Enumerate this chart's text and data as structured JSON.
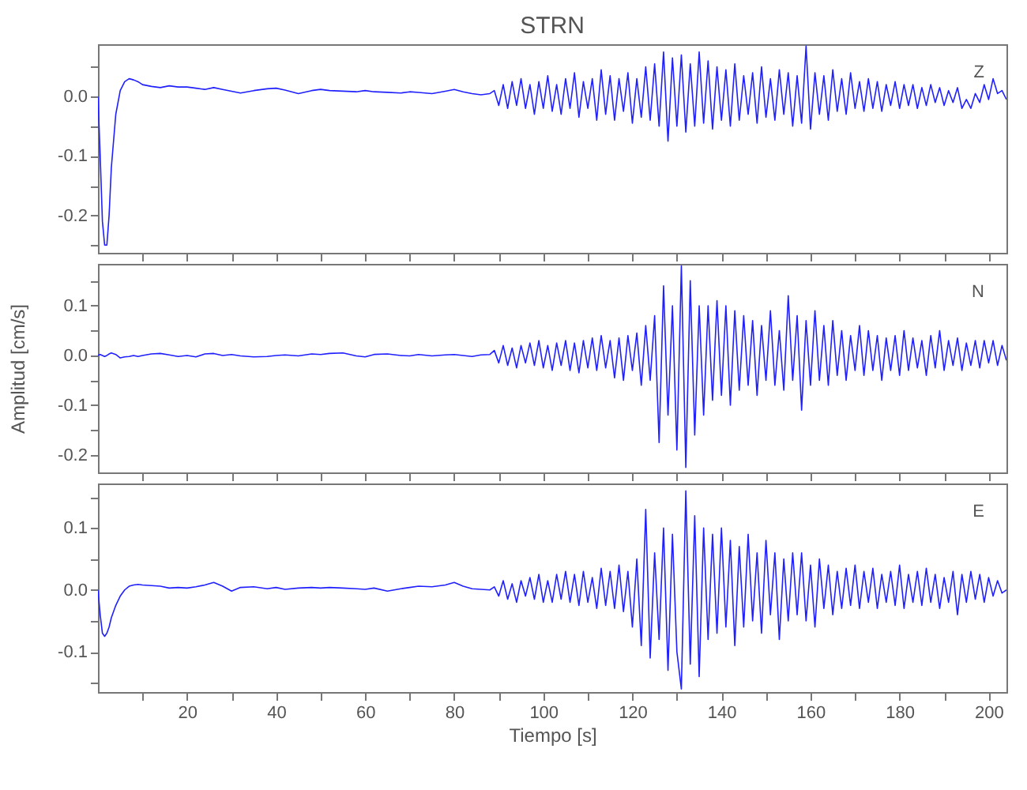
{
  "chart_data": [
    {
      "type": "line",
      "title": "STRN",
      "annotations": [
        "Z"
      ],
      "xlim": [
        0,
        204
      ],
      "ylim": [
        -0.263,
        0.088
      ],
      "tick_labels": "y",
      "grid": false,
      "xticks": [
        {
          "value": 10,
          "label": null
        },
        {
          "value": 20,
          "label": null
        },
        {
          "value": 30,
          "label": null
        },
        {
          "value": 40,
          "label": null
        },
        {
          "value": 50,
          "label": null
        },
        {
          "value": 60,
          "label": null
        },
        {
          "value": 70,
          "label": null
        },
        {
          "value": 80,
          "label": null
        },
        {
          "value": 90,
          "label": null
        },
        {
          "value": 100,
          "label": null
        },
        {
          "value": 110,
          "label": null
        },
        {
          "value": 120,
          "label": null
        },
        {
          "value": 130,
          "label": null
        },
        {
          "value": 140,
          "label": null
        },
        {
          "value": 150,
          "label": null
        },
        {
          "value": 160,
          "label": null
        },
        {
          "value": 170,
          "label": null
        },
        {
          "value": 180,
          "label": null
        },
        {
          "value": 190,
          "label": null
        },
        {
          "value": 200,
          "label": null
        }
      ],
      "yticks": [
        {
          "value": 0.05,
          "label": null
        },
        {
          "value": 0,
          "label": "0.0"
        },
        {
          "value": -0.05,
          "label": null
        },
        -0.1,
        {
          "value": -0.15,
          "label": null
        },
        -0.2,
        {
          "value": -0.25,
          "label": null
        }
      ],
      "x": [
        0,
        0.5,
        1,
        1.5,
        2,
        2.5,
        3,
        4,
        5,
        6,
        7,
        8,
        9,
        10,
        12,
        14,
        16,
        18,
        20,
        22,
        24,
        26,
        28,
        30,
        32,
        35,
        38,
        40,
        42,
        45,
        48,
        50,
        52,
        55,
        58,
        60,
        62,
        65,
        68,
        70,
        72,
        75,
        78,
        80,
        82,
        84,
        86,
        88,
        89,
        90,
        91,
        92,
        93,
        94,
        95,
        96,
        97,
        98,
        99,
        100,
        101,
        102,
        103,
        104,
        105,
        106,
        107,
        108,
        109,
        110,
        111,
        112,
        113,
        114,
        115,
        116,
        117,
        118,
        119,
        120,
        121,
        122,
        123,
        124,
        125,
        126,
        127,
        128,
        129,
        130,
        131,
        132,
        133,
        134,
        135,
        136,
        137,
        138,
        139,
        140,
        141,
        142,
        143,
        144,
        145,
        146,
        147,
        148,
        149,
        150,
        151,
        152,
        153,
        154,
        155,
        156,
        157,
        158,
        159,
        160,
        161,
        162,
        163,
        164,
        165,
        166,
        167,
        168,
        169,
        170,
        171,
        172,
        173,
        174,
        175,
        176,
        177,
        178,
        179,
        180,
        181,
        182,
        183,
        184,
        185,
        186,
        187,
        188,
        189,
        190,
        191,
        192,
        193,
        194,
        195,
        196,
        197,
        198,
        199,
        200,
        201,
        202,
        203,
        204
      ],
      "series": [
        {
          "color": "#2020ff",
          "values": [
            0,
            -0.1,
            -0.21,
            -0.25,
            -0.25,
            -0.2,
            -0.12,
            -0.03,
            0.01,
            0.025,
            0.03,
            0.028,
            0.025,
            0.02,
            0.017,
            0.015,
            0.018,
            0.016,
            0.016,
            0.014,
            0.012,
            0.015,
            0.012,
            0.009,
            0.006,
            0.01,
            0.013,
            0.014,
            0.011,
            0.005,
            0.01,
            0.012,
            0.01,
            0.009,
            0.008,
            0.01,
            0.008,
            0.007,
            0.006,
            0.008,
            0.007,
            0.005,
            0.009,
            0.012,
            0.008,
            0.005,
            0.003,
            0.005,
            0.01,
            -0.015,
            0.02,
            -0.02,
            0.025,
            -0.015,
            0.03,
            -0.02,
            0.02,
            -0.03,
            0.025,
            -0.02,
            0.035,
            -0.025,
            0.02,
            -0.03,
            0.03,
            -0.02,
            0.04,
            -0.035,
            0.025,
            -0.02,
            0.03,
            -0.04,
            0.045,
            -0.03,
            0.035,
            -0.04,
            0.03,
            -0.025,
            0.04,
            -0.045,
            0.03,
            -0.035,
            0.05,
            -0.04,
            0.055,
            -0.05,
            0.075,
            -0.075,
            0.065,
            -0.05,
            0.07,
            -0.06,
            0.055,
            -0.05,
            0.075,
            -0.045,
            0.06,
            -0.055,
            0.05,
            -0.04,
            0.045,
            -0.05,
            0.055,
            -0.04,
            0.035,
            -0.03,
            0.04,
            -0.045,
            0.05,
            -0.035,
            0.03,
            -0.04,
            0.045,
            -0.03,
            0.04,
            -0.05,
            0.035,
            -0.045,
            0.085,
            -0.055,
            0.04,
            -0.03,
            0.035,
            -0.04,
            0.045,
            -0.025,
            0.03,
            -0.03,
            0.04,
            -0.02,
            0.025,
            -0.025,
            0.03,
            -0.02,
            0.025,
            -0.025,
            0.02,
            -0.015,
            0.025,
            -0.02,
            0.02,
            -0.015,
            0.02,
            -0.02,
            0.015,
            -0.015,
            0.02,
            -0.01,
            0.015,
            -0.015,
            0.01,
            -0.01,
            0.015,
            -0.02,
            -0.005,
            -0.02,
            0.005,
            -0.01,
            0.02,
            -0.005,
            0.03,
            0.005,
            0.01,
            -0.005
          ]
        }
      ]
    },
    {
      "type": "line",
      "ylabel": "Amplitud [cm/s]",
      "annotations": [
        "N"
      ],
      "xlim": [
        0,
        204
      ],
      "ylim": [
        -0.235,
        0.184
      ],
      "tick_labels": "y",
      "grid": false,
      "xticks": [
        {
          "value": 10,
          "label": null
        },
        {
          "value": 20,
          "label": null
        },
        {
          "value": 30,
          "label": null
        },
        {
          "value": 40,
          "label": null
        },
        {
          "value": 50,
          "label": null
        },
        {
          "value": 60,
          "label": null
        },
        {
          "value": 70,
          "label": null
        },
        {
          "value": 80,
          "label": null
        },
        {
          "value": 90,
          "label": null
        },
        {
          "value": 100,
          "label": null
        },
        {
          "value": 110,
          "label": null
        },
        {
          "value": 120,
          "label": null
        },
        {
          "value": 130,
          "label": null
        },
        {
          "value": 140,
          "label": null
        },
        {
          "value": 150,
          "label": null
        },
        {
          "value": 160,
          "label": null
        },
        {
          "value": 170,
          "label": null
        },
        {
          "value": 180,
          "label": null
        },
        {
          "value": 190,
          "label": null
        },
        {
          "value": 200,
          "label": null
        }
      ],
      "yticks": [
        {
          "value": 0.15,
          "label": null
        },
        0.1,
        {
          "value": 0.05,
          "label": null
        },
        {
          "value": 0,
          "label": "0.0"
        },
        {
          "value": -0.05,
          "label": null
        },
        -0.1,
        {
          "value": -0.15,
          "label": null
        },
        -0.2
      ],
      "x": [
        0,
        0.5,
        1,
        1.5,
        2,
        2.5,
        3,
        4,
        5,
        6,
        7,
        8,
        9,
        10,
        12,
        14,
        16,
        18,
        20,
        22,
        24,
        26,
        28,
        30,
        32,
        35,
        38,
        40,
        42,
        45,
        48,
        50,
        52,
        55,
        58,
        60,
        62,
        65,
        68,
        70,
        72,
        75,
        78,
        80,
        82,
        84,
        86,
        88,
        89,
        90,
        91,
        92,
        93,
        94,
        95,
        96,
        97,
        98,
        99,
        100,
        101,
        102,
        103,
        104,
        105,
        106,
        107,
        108,
        109,
        110,
        111,
        112,
        113,
        114,
        115,
        116,
        117,
        118,
        119,
        120,
        121,
        122,
        123,
        124,
        125,
        126,
        127,
        128,
        129,
        130,
        131,
        132,
        133,
        134,
        135,
        136,
        137,
        138,
        139,
        140,
        141,
        142,
        143,
        144,
        145,
        146,
        147,
        148,
        149,
        150,
        151,
        152,
        153,
        154,
        155,
        156,
        157,
        158,
        159,
        160,
        161,
        162,
        163,
        164,
        165,
        166,
        167,
        168,
        169,
        170,
        171,
        172,
        173,
        174,
        175,
        176,
        177,
        178,
        179,
        180,
        181,
        182,
        183,
        184,
        185,
        186,
        187,
        188,
        189,
        190,
        191,
        192,
        193,
        194,
        195,
        196,
        197,
        198,
        199,
        200,
        201,
        202,
        203,
        204
      ],
      "series": [
        {
          "color": "#2020ff",
          "values": [
            0,
            0.002,
            0,
            -0.002,
            0,
            0.003,
            0.005,
            0.002,
            -0.005,
            -0.003,
            -0.002,
            0,
            -0.002,
            0,
            0.003,
            0.004,
            0.001,
            -0.002,
            0,
            -0.003,
            0.003,
            0.004,
            0,
            0.002,
            -0.001,
            -0.003,
            -0.002,
            0,
            0.001,
            -0.001,
            0.003,
            0.002,
            0.004,
            0.005,
            -0.001,
            -0.003,
            0.002,
            0.003,
            0,
            -0.001,
            0.002,
            -0.001,
            0.001,
            0.002,
            0,
            -0.002,
            0.001,
            0.002,
            0.01,
            -0.015,
            0.02,
            -0.02,
            0.015,
            -0.025,
            0.02,
            -0.015,
            0.025,
            -0.02,
            0.03,
            -0.025,
            0.02,
            -0.03,
            0.025,
            -0.02,
            0.03,
            -0.03,
            0.025,
            -0.035,
            0.03,
            -0.025,
            0.035,
            -0.03,
            0.04,
            -0.025,
            0.03,
            -0.045,
            0.035,
            -0.05,
            0.04,
            -0.03,
            0.045,
            -0.06,
            0.06,
            -0.05,
            0.08,
            -0.175,
            0.14,
            -0.12,
            0.1,
            -0.19,
            0.18,
            -0.225,
            0.15,
            -0.16,
            0.1,
            -0.12,
            0.1,
            -0.09,
            0.11,
            -0.08,
            0.1,
            -0.1,
            0.09,
            -0.07,
            0.08,
            -0.06,
            0.07,
            -0.08,
            0.06,
            -0.05,
            0.09,
            -0.06,
            0.05,
            -0.07,
            0.12,
            -0.05,
            0.08,
            -0.11,
            0.07,
            -0.06,
            0.09,
            -0.05,
            0.06,
            -0.06,
            0.07,
            -0.04,
            0.05,
            -0.05,
            0.04,
            -0.03,
            0.06,
            -0.04,
            0.05,
            -0.03,
            0.04,
            -0.05,
            0.035,
            -0.03,
            0.04,
            -0.04,
            0.05,
            -0.03,
            0.035,
            -0.025,
            0.03,
            -0.04,
            0.04,
            -0.025,
            0.05,
            -0.03,
            0.03,
            -0.02,
            0.035,
            -0.03,
            0.025,
            -0.02,
            0.03,
            -0.025,
            0.03,
            -0.015,
            0.03,
            -0.02,
            0.02,
            -0.01
          ]
        }
      ]
    },
    {
      "type": "line",
      "xlabel": "Tiempo [s]",
      "annotations": [
        "E"
      ],
      "xlim": [
        0,
        204
      ],
      "ylim": [
        -0.165,
        0.172
      ],
      "grid": false,
      "xticks": [
        {
          "value": 10,
          "label": null
        },
        20,
        {
          "value": 30,
          "label": null
        },
        40,
        {
          "value": 50,
          "label": null
        },
        60,
        {
          "value": 70,
          "label": null
        },
        80,
        {
          "value": 90,
          "label": null
        },
        100,
        {
          "value": 110,
          "label": null
        },
        120,
        {
          "value": 130,
          "label": null
        },
        140,
        {
          "value": 150,
          "label": null
        },
        160,
        {
          "value": 170,
          "label": null
        },
        180,
        {
          "value": 190,
          "label": null
        },
        200
      ],
      "yticks": [
        {
          "value": 0.15,
          "label": null
        },
        0.1,
        {
          "value": 0.05,
          "label": null
        },
        {
          "value": 0,
          "label": "0.0"
        },
        {
          "value": -0.05,
          "label": null
        },
        -0.1,
        {
          "value": -0.15,
          "label": null
        }
      ],
      "x": [
        0,
        0.5,
        1,
        1.5,
        2,
        2.5,
        3,
        4,
        5,
        6,
        7,
        8,
        9,
        10,
        12,
        14,
        16,
        18,
        20,
        22,
        24,
        26,
        28,
        30,
        32,
        35,
        38,
        40,
        42,
        45,
        48,
        50,
        52,
        55,
        58,
        60,
        62,
        65,
        68,
        70,
        72,
        75,
        78,
        80,
        82,
        84,
        86,
        88,
        89,
        90,
        91,
        92,
        93,
        94,
        95,
        96,
        97,
        98,
        99,
        100,
        101,
        102,
        103,
        104,
        105,
        106,
        107,
        108,
        109,
        110,
        111,
        112,
        113,
        114,
        115,
        116,
        117,
        118,
        119,
        120,
        121,
        122,
        123,
        124,
        125,
        126,
        127,
        128,
        129,
        130,
        131,
        132,
        133,
        134,
        135,
        136,
        137,
        138,
        139,
        140,
        141,
        142,
        143,
        144,
        145,
        146,
        147,
        148,
        149,
        150,
        151,
        152,
        153,
        154,
        155,
        156,
        157,
        158,
        159,
        160,
        161,
        162,
        163,
        164,
        165,
        166,
        167,
        168,
        169,
        170,
        171,
        172,
        173,
        174,
        175,
        176,
        177,
        178,
        179,
        180,
        181,
        182,
        183,
        184,
        185,
        186,
        187,
        188,
        189,
        190,
        191,
        192,
        193,
        194,
        195,
        196,
        197,
        198,
        199,
        200,
        201,
        202,
        203,
        204
      ],
      "series": [
        {
          "color": "#2020ff",
          "values": [
            0,
            -0.04,
            -0.07,
            -0.075,
            -0.07,
            -0.06,
            -0.045,
            -0.025,
            -0.01,
            0.0,
            0.006,
            0.008,
            0.009,
            0.008,
            0.007,
            0.006,
            0.003,
            0.004,
            0.003,
            0.005,
            0.008,
            0.012,
            0.006,
            -0.002,
            0.004,
            0.005,
            0.002,
            0.004,
            0.001,
            0.003,
            0.004,
            0.003,
            0.004,
            0.003,
            0.002,
            0.001,
            0.003,
            -0.002,
            0.002,
            0.004,
            0.006,
            0.005,
            0.008,
            0.012,
            0.006,
            0.002,
            0.001,
            0.0,
            0.005,
            -0.01,
            0.015,
            -0.015,
            0.01,
            -0.02,
            0.015,
            -0.01,
            0.02,
            -0.015,
            0.025,
            -0.02,
            0.015,
            -0.02,
            0.025,
            -0.015,
            0.03,
            -0.02,
            0.025,
            -0.025,
            0.03,
            -0.02,
            0.02,
            -0.03,
            0.035,
            -0.025,
            0.03,
            -0.03,
            0.04,
            -0.035,
            0.03,
            -0.06,
            0.05,
            -0.09,
            0.13,
            -0.11,
            0.06,
            -0.08,
            0.1,
            -0.13,
            0.09,
            -0.1,
            -0.16,
            0.16,
            -0.12,
            0.12,
            -0.14,
            0.1,
            -0.08,
            0.09,
            -0.07,
            0.1,
            -0.06,
            0.08,
            -0.09,
            0.07,
            -0.06,
            0.09,
            -0.05,
            0.06,
            -0.07,
            0.08,
            -0.04,
            0.06,
            -0.08,
            0.05,
            -0.05,
            0.06,
            -0.04,
            0.06,
            -0.05,
            0.04,
            -0.06,
            0.05,
            -0.03,
            0.04,
            -0.04,
            0.03,
            -0.03,
            0.035,
            -0.025,
            0.04,
            -0.03,
            0.03,
            -0.02,
            0.035,
            -0.03,
            0.025,
            -0.02,
            0.03,
            -0.025,
            0.04,
            -0.03,
            0.025,
            -0.02,
            0.03,
            -0.025,
            0.035,
            -0.02,
            0.025,
            -0.03,
            0.02,
            -0.02,
            0.03,
            -0.04,
            0.025,
            -0.02,
            0.03,
            -0.015,
            0.025,
            -0.02,
            0.02,
            -0.01,
            0.015,
            -0.005,
            0.0
          ]
        }
      ]
    }
  ]
}
